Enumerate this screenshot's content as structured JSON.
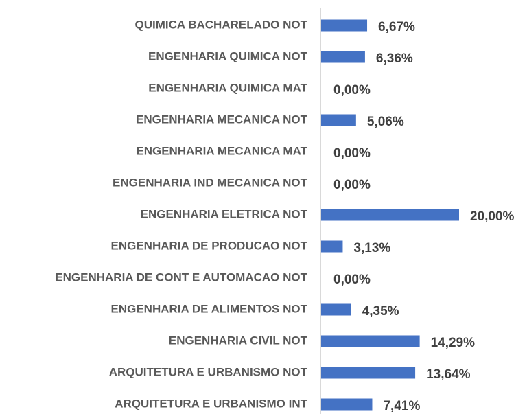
{
  "chart_data": {
    "type": "bar",
    "orientation": "horizontal",
    "categories": [
      "QUIMICA BACHARELADO NOT",
      "ENGENHARIA QUIMICA NOT",
      "ENGENHARIA QUIMICA MAT",
      "ENGENHARIA MECANICA NOT",
      "ENGENHARIA MECANICA MAT",
      "ENGENHARIA IND MECANICA NOT",
      "ENGENHARIA ELETRICA NOT",
      "ENGENHARIA DE PRODUCAO NOT",
      "ENGENHARIA DE CONT E AUTOMACAO NOT",
      "ENGENHARIA DE ALIMENTOS NOT",
      "ENGENHARIA CIVIL NOT",
      "ARQUITETURA E URBANISMO NOT",
      "ARQUITETURA E URBANISMO INT"
    ],
    "values": [
      6.67,
      6.36,
      0,
      5.06,
      0,
      0,
      20,
      3.13,
      0,
      4.35,
      14.29,
      13.64,
      7.41
    ],
    "value_labels": [
      "6,67%",
      "6,36%",
      "0,00%",
      "5,06%",
      "0,00%",
      "0,00%",
      "20,00%",
      "3,13%",
      "0,00%",
      "4,35%",
      "14,29%",
      "13,64%",
      "7,41%"
    ],
    "color": "#4472c4"
  }
}
